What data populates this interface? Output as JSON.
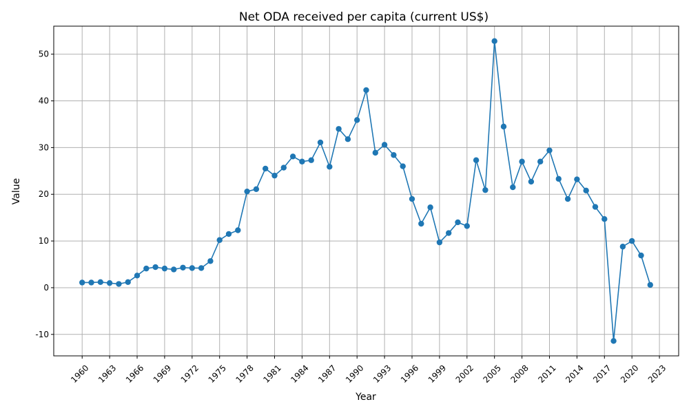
{
  "chart_data": {
    "type": "line",
    "title": "Net ODA received per capita (current US$)",
    "xlabel": "Year",
    "ylabel": "Value",
    "xlim": [
      1956.9,
      2025.1
    ],
    "ylim": [
      -14.6,
      56.0
    ],
    "xticks": [
      1960,
      1963,
      1966,
      1969,
      1972,
      1975,
      1978,
      1981,
      1984,
      1987,
      1990,
      1993,
      1996,
      1999,
      2002,
      2005,
      2008,
      2011,
      2014,
      2017,
      2020,
      2023
    ],
    "yticks": [
      -10,
      0,
      10,
      20,
      30,
      40,
      50
    ],
    "grid": true,
    "line_color": "#1f77b4",
    "marker": "circle",
    "series": [
      {
        "x": [
          1960,
          1961,
          1962,
          1963,
          1964,
          1965,
          1966,
          1967,
          1968,
          1969,
          1970,
          1971,
          1972,
          1973,
          1974,
          1975,
          1976,
          1977,
          1978,
          1979,
          1980,
          1981,
          1982,
          1983,
          1984,
          1985,
          1986,
          1987,
          1988,
          1989,
          1990,
          1991,
          1992,
          1993,
          1994,
          1995,
          1996,
          1997,
          1998,
          1999,
          2000,
          2001,
          2002,
          2003,
          2004,
          2005,
          2006,
          2007,
          2008,
          2009,
          2010,
          2011,
          2012,
          2013,
          2014,
          2015,
          2016,
          2017,
          2018,
          2019,
          2020,
          2021,
          2022
        ],
        "y": [
          1.1,
          1.1,
          1.2,
          1.0,
          0.8,
          1.2,
          2.6,
          4.1,
          4.4,
          4.1,
          3.9,
          4.3,
          4.2,
          4.2,
          5.7,
          10.2,
          11.5,
          12.3,
          20.6,
          21.1,
          25.5,
          24.0,
          25.7,
          28.1,
          27.0,
          27.3,
          31.1,
          25.9,
          34.0,
          31.8,
          35.9,
          42.3,
          28.9,
          30.6,
          28.4,
          26.0,
          19.0,
          13.7,
          17.2,
          9.7,
          11.7,
          14.0,
          13.2,
          27.3,
          20.9,
          52.8,
          34.5,
          21.5,
          27.0,
          22.7,
          27.0,
          29.4,
          23.3,
          19.0,
          23.2,
          20.8,
          17.3,
          14.7,
          -11.4,
          8.8,
          10.0,
          6.9,
          0.6
        ]
      }
    ]
  }
}
